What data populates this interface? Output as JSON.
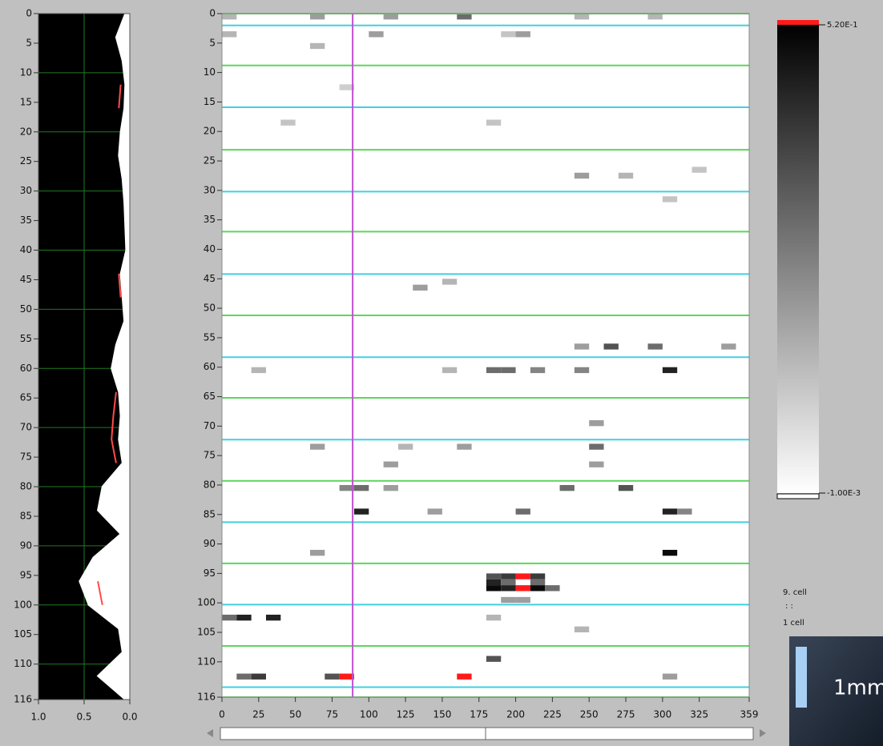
{
  "chart_data": [
    {
      "type": "profile",
      "xlim": [
        1,
        0
      ],
      "ylim": [
        0,
        116
      ],
      "xticks": [
        {
          "value": 1,
          "label": "1.0"
        },
        0.5,
        {
          "value": 0,
          "label": "0.0"
        }
      ],
      "yticks": [
        0,
        5,
        10,
        15,
        20,
        25,
        30,
        35,
        40,
        45,
        50,
        55,
        60,
        65,
        70,
        75,
        80,
        85,
        90,
        95,
        100,
        105,
        110,
        116
      ],
      "grid_y": [
        10,
        20,
        30,
        40,
        50,
        60,
        70,
        80,
        90,
        100,
        110
      ],
      "grid_color": "#1f7a1f",
      "background": "#000000",
      "depth": [
        0,
        4,
        8,
        12,
        16,
        20,
        24,
        28,
        32,
        36,
        40,
        44,
        48,
        52,
        56,
        60,
        64,
        68,
        72,
        76,
        80,
        84,
        88,
        92,
        96,
        100,
        104,
        108,
        112,
        116
      ],
      "series": [
        {
          "color": "#ffffff",
          "fill": true,
          "values": [
            0.05,
            0.15,
            0.08,
            0.05,
            0.06,
            0.1,
            0.12,
            0.08,
            0.06,
            0.05,
            0.04,
            0.1,
            0.08,
            0.06,
            0.15,
            0.2,
            0.12,
            0.1,
            0.12,
            0.08,
            0.3,
            0.35,
            0.1,
            0.4,
            0.55,
            0.45,
            0.12,
            0.08,
            0.35,
            0.05
          ]
        },
        {
          "color": "#ff4a4a",
          "fill": false,
          "values": [
            null,
            null,
            null,
            0.1,
            0.12,
            null,
            null,
            null,
            null,
            null,
            null,
            0.12,
            0.1,
            null,
            null,
            null,
            0.15,
            0.18,
            0.2,
            0.15,
            null,
            null,
            null,
            null,
            0.35,
            0.3,
            null,
            null,
            null,
            null
          ]
        }
      ]
    },
    {
      "type": "heatmap",
      "xlim": [
        0,
        359
      ],
      "ylim": [
        0,
        116
      ],
      "xticks": [
        0,
        25,
        50,
        75,
        100,
        125,
        150,
        175,
        200,
        225,
        250,
        275,
        300,
        325,
        359
      ],
      "yticks": [
        0,
        5,
        10,
        15,
        20,
        25,
        30,
        35,
        40,
        45,
        50,
        55,
        60,
        65,
        70,
        75,
        80,
        85,
        90,
        95,
        100,
        105,
        110,
        116
      ],
      "bin_size": [
        10,
        1
      ],
      "zlim": [
        -0.001,
        0.52
      ],
      "colors": {
        "low": "#ffffff",
        "high": "#000000",
        "over": "#ff1a1a"
      },
      "colorbar_ticks": [
        {
          "value": 0.52,
          "label": "5.20E-1"
        },
        {
          "value": -0.001,
          "label": "-1.00E-3"
        }
      ],
      "cursor_x": 89,
      "cursor_color": "#c050d0",
      "boundaries": {
        "y": [
          0,
          2,
          8.8,
          15.9,
          23.1,
          30.2,
          37,
          44.2,
          51.2,
          58.3,
          65.2,
          72.3,
          79.3,
          86.3,
          93.3,
          100.3,
          107.3,
          114.3,
          116
        ],
        "color": [
          "#5cd65c",
          "#40d0e0",
          "#5cd65c",
          "#40d0e0",
          "#5cd65c",
          "#40d0e0",
          "#5cd65c",
          "#40d0e0",
          "#5cd65c",
          "#40d0e0",
          "#5cd65c",
          "#40d0e0",
          "#5cd65c",
          "#40d0e0",
          "#5cd65c",
          "#40d0e0",
          "#5cd65c",
          "#40d0e0",
          "#5cd65c"
        ]
      },
      "cells": {
        "x": [
          0,
          60,
          110,
          160,
          240,
          290,
          0,
          100,
          190,
          200,
          60,
          80,
          40,
          180,
          240,
          270,
          320,
          300,
          150,
          130,
          240,
          260,
          290,
          340,
          20,
          150,
          180,
          190,
          210,
          240,
          300,
          250,
          60,
          120,
          160,
          250,
          110,
          250,
          80,
          90,
          110,
          230,
          270,
          90,
          140,
          200,
          300,
          310,
          60,
          300,
          180,
          190,
          200,
          210,
          180,
          190,
          210,
          180,
          190,
          200,
          210,
          220,
          190,
          200,
          0,
          10,
          30,
          180,
          240,
          180,
          10,
          20,
          70,
          80,
          160,
          300
        ],
        "y": [
          0,
          0,
          0,
          0,
          0,
          0,
          3,
          3,
          3,
          3,
          5,
          12,
          18,
          18,
          27,
          27,
          26,
          31,
          45,
          46,
          56,
          56,
          56,
          56,
          60,
          60,
          60,
          60,
          60,
          60,
          60,
          69,
          73,
          73,
          73,
          73,
          76,
          76,
          80,
          80,
          80,
          80,
          80,
          84,
          84,
          84,
          84,
          84,
          91,
          91,
          95,
          95,
          95,
          95,
          96,
          96,
          96,
          97,
          97,
          97,
          97,
          97,
          99,
          99,
          102,
          102,
          102,
          102,
          104,
          109,
          112,
          112,
          112,
          112,
          112,
          112
        ],
        "values": [
          0.15,
          0.2,
          0.2,
          0.3,
          0.15,
          0.15,
          0.15,
          0.2,
          0.12,
          0.2,
          0.15,
          0.1,
          0.12,
          0.12,
          0.2,
          0.15,
          0.12,
          0.12,
          0.15,
          0.2,
          0.2,
          0.35,
          0.3,
          0.2,
          0.15,
          0.15,
          0.3,
          0.3,
          0.25,
          0.25,
          0.45,
          0.2,
          0.2,
          0.15,
          0.2,
          0.3,
          0.2,
          0.2,
          0.25,
          0.3,
          0.2,
          0.3,
          0.35,
          0.45,
          0.2,
          0.3,
          0.45,
          0.25,
          0.2,
          0.5,
          0.35,
          0.4,
          0.6,
          0.4,
          0.45,
          0.3,
          0.3,
          0.5,
          0.45,
          0.6,
          0.5,
          0.3,
          0.2,
          0.2,
          0.3,
          0.45,
          0.45,
          0.15,
          0.15,
          0.35,
          0.3,
          0.4,
          0.35,
          0.6,
          0.6,
          0.2
        ]
      }
    }
  ],
  "side_panel": {
    "top_label": "9. cell",
    "dots": ":   :",
    "bottom_label": "1 cell",
    "scale_bar": "1mm"
  }
}
